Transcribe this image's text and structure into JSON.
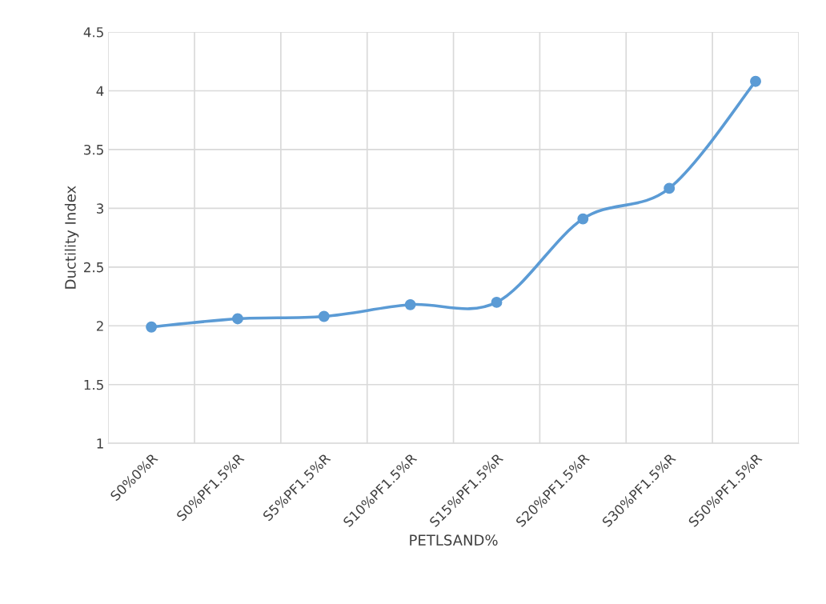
{
  "chart_data": {
    "type": "line",
    "xlabel": "PETLSAND%",
    "ylabel": "Ductility Index",
    "categories": [
      "S0%0%R",
      "S0%PF1.5%R",
      "S5%PF1.5%R",
      "S10%PF1.5%R",
      "S15%PF1.5%R",
      "S20%PF1.5%R",
      "S30%PF1.5%R",
      "S50%PF1.5%R"
    ],
    "series": [
      {
        "color": "#5b9bd5",
        "values": [
          1.99,
          2.06,
          2.08,
          2.18,
          2.2,
          2.91,
          3.17,
          4.08
        ]
      }
    ],
    "ylim": [
      1,
      4.5
    ],
    "yticks": [
      1,
      1.5,
      2,
      2.5,
      3,
      3.5,
      4,
      4.5
    ],
    "grid": true,
    "marker": "circle",
    "line_style": "solid",
    "legend": false
  }
}
